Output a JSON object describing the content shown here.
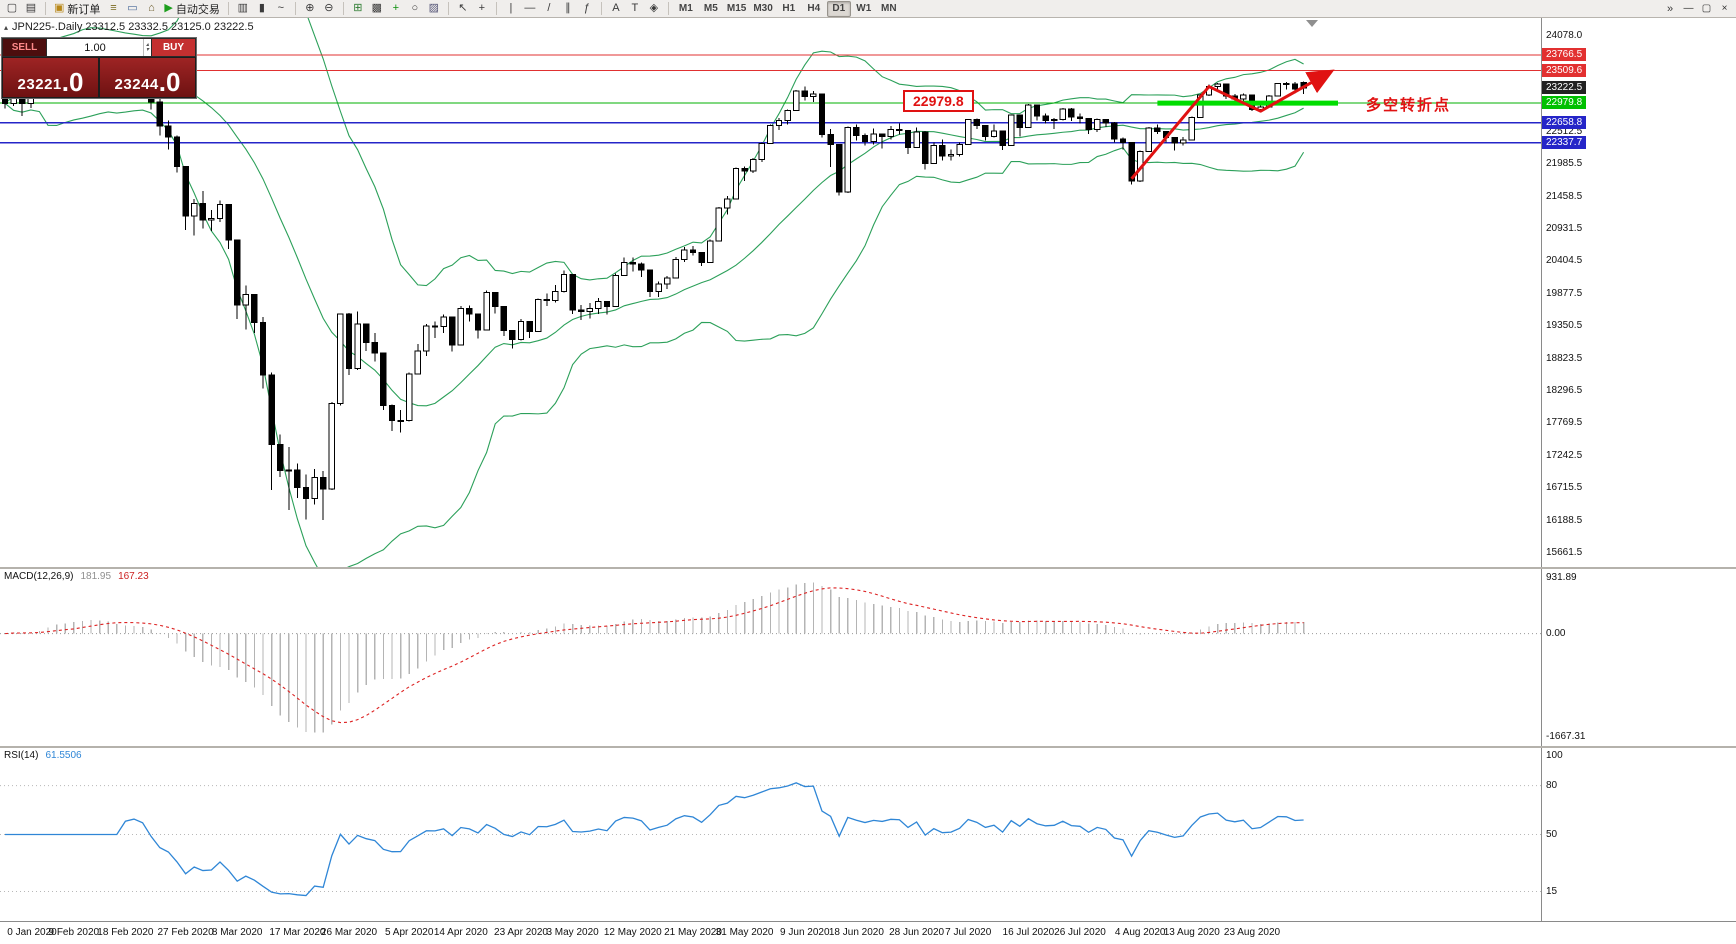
{
  "toolbar": {
    "items": [
      {
        "n": "new-chart-icon",
        "g": "▢"
      },
      {
        "n": "chart-profiles-icon",
        "g": "▤"
      },
      {
        "n": "sep"
      },
      {
        "n": "new-order-button",
        "g": "▣",
        "gcolor": "#b88717",
        "label": "新订单"
      },
      {
        "n": "market-watch-icon",
        "g": "≡",
        "gcolor": "#7a6a20"
      },
      {
        "n": "data-window-icon",
        "g": "▭",
        "gcolor": "#4a6a9a"
      },
      {
        "n": "navigator-icon",
        "g": "⌂",
        "gcolor": "#6a5a2a"
      },
      {
        "n": "autotrading-button",
        "g": "▶",
        "gcolor": "#1d9e1d",
        "label": "自动交易"
      },
      {
        "n": "sep"
      },
      {
        "n": "bar-chart-icon",
        "g": "▥"
      },
      {
        "n": "candlestick-chart-icon",
        "g": "▮"
      },
      {
        "n": "line-chart-icon",
        "g": "~"
      },
      {
        "n": "sep"
      },
      {
        "n": "zoom-in-icon",
        "g": "⊕"
      },
      {
        "n": "zoom-out-icon",
        "g": "⊖"
      },
      {
        "n": "sep"
      },
      {
        "n": "tile-windows-icon",
        "g": "⊞",
        "gcolor": "#2e7d32"
      },
      {
        "n": "cascade-windows-icon",
        "g": "▩"
      },
      {
        "n": "add-indicator-icon",
        "g": "+",
        "gcolor": "#0a8f0a"
      },
      {
        "n": "periods-icon",
        "g": "○"
      },
      {
        "n": "templates-icon",
        "g": "▨",
        "gcolor": "#555577"
      },
      {
        "n": "sep"
      },
      {
        "n": "cursor-icon",
        "g": "↖"
      },
      {
        "n": "crosshair-icon",
        "g": "+"
      },
      {
        "n": "sep"
      },
      {
        "n": "vertical-line-icon",
        "g": "|"
      },
      {
        "n": "horizontal-line-icon",
        "g": "—"
      },
      {
        "n": "trendline-icon",
        "g": "/"
      },
      {
        "n": "channel-icon",
        "g": "∥"
      },
      {
        "n": "fibonacci-icon",
        "g": "ƒ"
      },
      {
        "n": "sep"
      },
      {
        "n": "text-icon",
        "g": "A"
      },
      {
        "n": "text-label-icon",
        "g": "T"
      },
      {
        "n": "shapes-icon",
        "g": "◈"
      },
      {
        "n": "sep"
      }
    ],
    "timeframes": [
      "M1",
      "M5",
      "M15",
      "M30",
      "H1",
      "H4",
      "D1",
      "W1",
      "MN"
    ],
    "active_timeframe": "D1",
    "overflow_icon": "»",
    "window_buttons": [
      {
        "n": "window-minimize-button",
        "g": "—"
      },
      {
        "n": "window-restore-button",
        "g": "▢"
      },
      {
        "n": "window-close-button",
        "g": "×"
      }
    ]
  },
  "chart": {
    "title": "JPN225-.Daily  23312.5 23332.5 23125.0 23222.5",
    "collapse_icon": "▴"
  },
  "trade_panel": {
    "sell_label": "SELL",
    "buy_label": "BUY",
    "lot": "1.00",
    "sell_price": "23221.0",
    "buy_price": "23244.0",
    "spin_up": "▴",
    "spin_down": "▾"
  },
  "annotations": {
    "price_callout": "22979.8",
    "note_text": "多空转折点"
  },
  "macd": {
    "name": "MACD(12,26,9)",
    "value_main": "181.95",
    "value_signal": "167.23",
    "fast": 12,
    "slow": 26,
    "signal_period": 9,
    "axis_max": "931.89",
    "axis_zero": "0.00",
    "axis_min": "-1667.31",
    "histogram_color": "#b4b4b4",
    "signal_color": "#dd2222"
  },
  "rsi": {
    "name": "RSI(14)",
    "value": "61.5506",
    "period": 14,
    "line_color": "#2f86d6",
    "axis": [
      {
        "t": "100",
        "v": 100
      },
      {
        "t": "80",
        "v": 80
      },
      {
        "t": "50",
        "v": 50
      },
      {
        "t": "15",
        "v": 15
      }
    ],
    "levels": [
      80,
      50,
      15
    ]
  },
  "chart_data": {
    "type": "candlestick",
    "symbol": "JPN225",
    "timeframe": "Daily",
    "last_ohlc": {
      "open": 23312.5,
      "high": 23332.5,
      "low": 23125.0,
      "close": 23222.5
    },
    "price_range": {
      "max": 24300,
      "min": 15500
    },
    "candles": [
      [
        23050,
        23110,
        22892,
        22977
      ],
      [
        22977,
        23285,
        22930,
        23205
      ],
      [
        23205,
        23250,
        22775,
        22972
      ],
      [
        22972,
        23120,
        22900,
        23085
      ],
      [
        23085,
        23360,
        23050,
        23320
      ],
      [
        23320,
        23995,
        23300,
        23874
      ],
      [
        23874,
        23940,
        23690,
        23828
      ],
      [
        23828,
        23850,
        23580,
        23686
      ],
      [
        23686,
        23790,
        23640,
        23740
      ],
      [
        23740,
        23890,
        23700,
        23861
      ],
      [
        23861,
        23920,
        23740,
        23828
      ],
      [
        23828,
        23860,
        23610,
        23688
      ],
      [
        23688,
        23710,
        23470,
        23524
      ],
      [
        23524,
        23540,
        23150,
        23193
      ],
      [
        23193,
        23430,
        23140,
        23401
      ],
      [
        23401,
        23540,
        23330,
        23479
      ],
      [
        23479,
        23500,
        23290,
        23386
      ],
      [
        23386,
        23390,
        22880,
        23000
      ],
      [
        23000,
        23050,
        22450,
        22605
      ],
      [
        22605,
        22700,
        22230,
        22426
      ],
      [
        22426,
        22450,
        21850,
        21948
      ],
      [
        21948,
        21950,
        20920,
        21143
      ],
      [
        21143,
        21420,
        20830,
        21344
      ],
      [
        21344,
        21550,
        20940,
        21083
      ],
      [
        21083,
        21240,
        20900,
        21100
      ],
      [
        21100,
        21400,
        21050,
        21329
      ],
      [
        21329,
        21330,
        20610,
        20750
      ],
      [
        20750,
        20760,
        19470,
        19699
      ],
      [
        19699,
        20010,
        19300,
        19867
      ],
      [
        19867,
        19870,
        19240,
        19416
      ],
      [
        19416,
        19500,
        18340,
        18560
      ],
      [
        18560,
        18600,
        16690,
        17431
      ],
      [
        17431,
        17590,
        16900,
        17002
      ],
      [
        17002,
        17390,
        16360,
        17012
      ],
      [
        17012,
        17120,
        16560,
        16727
      ],
      [
        16727,
        16940,
        16210,
        16553
      ],
      [
        16553,
        17030,
        16450,
        16888
      ],
      [
        16888,
        17000,
        16200,
        16700
      ],
      [
        16700,
        18120,
        16690,
        18092
      ],
      [
        18092,
        19560,
        18060,
        19547
      ],
      [
        19547,
        19570,
        18560,
        18665
      ],
      [
        18665,
        19590,
        18640,
        19389
      ],
      [
        19389,
        19390,
        18950,
        19085
      ],
      [
        19085,
        19240,
        18780,
        18917
      ],
      [
        18917,
        18920,
        17990,
        18065
      ],
      [
        18065,
        18080,
        17650,
        17818
      ],
      [
        17818,
        17990,
        17620,
        17820
      ],
      [
        17820,
        18600,
        17800,
        18576
      ],
      [
        18576,
        19060,
        18570,
        18950
      ],
      [
        18950,
        19390,
        18870,
        19353
      ],
      [
        19353,
        19430,
        19160,
        19346
      ],
      [
        19346,
        19540,
        19240,
        19499
      ],
      [
        19499,
        19500,
        18940,
        19043
      ],
      [
        19043,
        19680,
        19040,
        19639
      ],
      [
        19639,
        19690,
        19430,
        19550
      ],
      [
        19550,
        19560,
        19150,
        19290
      ],
      [
        19290,
        19930,
        19280,
        19897
      ],
      [
        19897,
        19900,
        19560,
        19669
      ],
      [
        19669,
        19670,
        19190,
        19281
      ],
      [
        19281,
        19290,
        18990,
        19137
      ],
      [
        19137,
        19470,
        19120,
        19429
      ],
      [
        19429,
        19440,
        19160,
        19262
      ],
      [
        19262,
        19800,
        19260,
        19783
      ],
      [
        19783,
        19880,
        19680,
        19771
      ],
      [
        19771,
        20020,
        19740,
        19920
      ],
      [
        19920,
        20260,
        19900,
        20193
      ],
      [
        20193,
        20200,
        19550,
        19619
      ],
      [
        19619,
        19700,
        19450,
        19595
      ],
      [
        19595,
        19730,
        19480,
        19640
      ],
      [
        19640,
        19810,
        19550,
        19750
      ],
      [
        19750,
        19760,
        19540,
        19674
      ],
      [
        19674,
        20210,
        19670,
        20179
      ],
      [
        20179,
        20470,
        20170,
        20390
      ],
      [
        20390,
        20470,
        20240,
        20366
      ],
      [
        20366,
        20390,
        20150,
        20267
      ],
      [
        20267,
        20270,
        19830,
        19914
      ],
      [
        19914,
        20080,
        19830,
        20037
      ],
      [
        20037,
        20170,
        19960,
        20133
      ],
      [
        20133,
        20480,
        20130,
        20433
      ],
      [
        20433,
        20640,
        20400,
        20595
      ],
      [
        20595,
        20660,
        20500,
        20552
      ],
      [
        20552,
        20560,
        20330,
        20388
      ],
      [
        20388,
        20760,
        20380,
        20741
      ],
      [
        20741,
        21290,
        20740,
        21271
      ],
      [
        21271,
        21470,
        21170,
        21419
      ],
      [
        21419,
        21930,
        21410,
        21916
      ],
      [
        21916,
        21950,
        21710,
        21877
      ],
      [
        21877,
        22090,
        21840,
        22062
      ],
      [
        22062,
        22340,
        22020,
        22326
      ],
      [
        22326,
        22630,
        22320,
        22613
      ],
      [
        22613,
        22740,
        22540,
        22696
      ],
      [
        22696,
        22880,
        22630,
        22864
      ],
      [
        22864,
        23190,
        22860,
        23178
      ],
      [
        23178,
        23250,
        23020,
        23091
      ],
      [
        23091,
        23180,
        23000,
        23125
      ],
      [
        23125,
        23130,
        22420,
        22472
      ],
      [
        22472,
        22560,
        21940,
        22305
      ],
      [
        22305,
        22310,
        21480,
        21531
      ],
      [
        21531,
        22600,
        21520,
        22582
      ],
      [
        22582,
        22630,
        22370,
        22456
      ],
      [
        22456,
        22490,
        22290,
        22355
      ],
      [
        22355,
        22570,
        22310,
        22478
      ],
      [
        22478,
        22490,
        22240,
        22437
      ],
      [
        22437,
        22610,
        22390,
        22549
      ],
      [
        22549,
        22650,
        22470,
        22534
      ],
      [
        22534,
        22540,
        22150,
        22260
      ],
      [
        22260,
        22580,
        22250,
        22512
      ],
      [
        22512,
        22530,
        21900,
        21995
      ],
      [
        21995,
        22340,
        21990,
        22288
      ],
      [
        22288,
        22390,
        22050,
        22121
      ],
      [
        22121,
        22230,
        22050,
        22146
      ],
      [
        22146,
        22340,
        22110,
        22306
      ],
      [
        22306,
        22720,
        22300,
        22714
      ],
      [
        22714,
        22730,
        22560,
        22614
      ],
      [
        22614,
        22620,
        22370,
        22438
      ],
      [
        22438,
        22630,
        22420,
        22529
      ],
      [
        22529,
        22530,
        22220,
        22291
      ],
      [
        22291,
        22790,
        22280,
        22784
      ],
      [
        22784,
        22790,
        22440,
        22587
      ],
      [
        22587,
        22970,
        22580,
        22946
      ],
      [
        22946,
        22950,
        22700,
        22770
      ],
      [
        22770,
        22810,
        22650,
        22696
      ],
      [
        22696,
        22740,
        22560,
        22717
      ],
      [
        22717,
        22900,
        22700,
        22884
      ],
      [
        22884,
        22900,
        22690,
        22751
      ],
      [
        22751,
        22810,
        22650,
        22730
      ],
      [
        22730,
        22740,
        22480,
        22550
      ],
      [
        22550,
        22730,
        22510,
        22715
      ],
      [
        22715,
        22720,
        22590,
        22657
      ],
      [
        22657,
        22670,
        22340,
        22397
      ],
      [
        22397,
        22420,
        22230,
        22339
      ],
      [
        22339,
        22340,
        21660,
        21710
      ],
      [
        21710,
        22210,
        21700,
        22195
      ],
      [
        22195,
        22590,
        22190,
        22573
      ],
      [
        22573,
        22630,
        22480,
        22515
      ],
      [
        22515,
        22520,
        22340,
        22418
      ],
      [
        22418,
        22430,
        22210,
        22330
      ],
      [
        22330,
        22430,
        22290,
        22380
      ],
      [
        22380,
        22760,
        22370,
        22750
      ],
      [
        22750,
        23130,
        22740,
        23111
      ],
      [
        23111,
        23280,
        23100,
        23249
      ],
      [
        23249,
        23310,
        23190,
        23289
      ],
      [
        23289,
        23290,
        23050,
        23096
      ],
      [
        23096,
        23130,
        22990,
        23051
      ],
      [
        23051,
        23140,
        22990,
        23111
      ],
      [
        23111,
        23120,
        22850,
        22880
      ],
      [
        22880,
        22990,
        22840,
        22920
      ],
      [
        22920,
        23110,
        22910,
        23100
      ],
      [
        23100,
        23300,
        23090,
        23296
      ],
      [
        23296,
        23320,
        23200,
        23290
      ],
      [
        23290,
        23320,
        23140,
        23208
      ],
      [
        23312.5,
        23332.5,
        23125,
        23222.5
      ]
    ],
    "x_labels": [
      {
        "t": "0 Jan 2020",
        "i": 1
      },
      {
        "t": "9 Feb 2020",
        "i": 8
      },
      {
        "t": "18 Feb 2020",
        "i": 14
      },
      {
        "t": "27 Feb 2020",
        "i": 21
      },
      {
        "t": "8 Mar 2020",
        "i": 27
      },
      {
        "t": "17 Mar 2020",
        "i": 34
      },
      {
        "t": "26 Mar 2020",
        "i": 40
      },
      {
        "t": "5 Apr 2020",
        "i": 47
      },
      {
        "t": "14 Apr 2020",
        "i": 53
      },
      {
        "t": "23 Apr 2020",
        "i": 60
      },
      {
        "t": "3 May 2020",
        "i": 66
      },
      {
        "t": "12 May 2020",
        "i": 73
      },
      {
        "t": "21 May 2020",
        "i": 80
      },
      {
        "t": "31 May 2020",
        "i": 86
      },
      {
        "t": "9 Jun 2020",
        "i": 93
      },
      {
        "t": "18 Jun 2020",
        "i": 99
      },
      {
        "t": "28 Jun 2020",
        "i": 106
      },
      {
        "t": "7 Jul 2020",
        "i": 112
      },
      {
        "t": "16 Jul 2020",
        "i": 119
      },
      {
        "t": "26 Jul 2020",
        "i": 125
      },
      {
        "t": "4 Aug 2020",
        "i": 132
      },
      {
        "t": "13 Aug 2020",
        "i": 138
      },
      {
        "t": "23 Aug 2020",
        "i": 145
      }
    ],
    "y_plain": [
      "24078.0",
      "22512.5",
      "21985.5",
      "21458.5",
      "20931.5",
      "20404.5",
      "19877.5",
      "19350.5",
      "18823.5",
      "18296.5",
      "17769.5",
      "17242.5",
      "16715.5",
      "16188.5",
      "15661.5"
    ],
    "y_tags": [
      {
        "text": "23766.5",
        "price": 23766.5,
        "color": "#e23030"
      },
      {
        "text": "23509.6",
        "price": 23509.6,
        "color": "#e23030"
      },
      {
        "text": "23222.5",
        "price": 23222.5,
        "color": "#222222"
      },
      {
        "text": "22979.8",
        "price": 22979.8,
        "color": "#00c000"
      },
      {
        "text": "22658.8",
        "price": 22658.8,
        "color": "#2525c8"
      },
      {
        "text": "22337.7",
        "price": 22337.7,
        "color": "#2525c8"
      }
    ],
    "hlines": [
      {
        "price": 23766.5,
        "color": "#e03030",
        "w": 1
      },
      {
        "price": 23509.6,
        "color": "#e03030",
        "w": 1
      },
      {
        "price": 22979.8,
        "color": "#00b000",
        "w": 1
      },
      {
        "price": 22658.8,
        "color": "#2525c8",
        "w": 1.4
      },
      {
        "price": 22337.7,
        "color": "#2525c8",
        "w": 1.4
      }
    ],
    "bollinger": {
      "period": 20,
      "deviation": 2,
      "color": "#2ca05a"
    },
    "candle_style": {
      "up_fill": "#ffffff",
      "down_fill": "#000000",
      "outline": "#000000"
    },
    "support_segment": {
      "price": 22979.8,
      "i1": 134,
      "i2": 155,
      "color": "#00dd00",
      "w": 5
    },
    "trend_arrow": {
      "color": "#e01212",
      "w": 3,
      "points": [
        {
          "i": 131,
          "p": 21750
        },
        {
          "i": 140,
          "p": 23250
        },
        {
          "i": 146,
          "p": 22850
        },
        {
          "i": 154,
          "p": 23480
        }
      ]
    }
  }
}
